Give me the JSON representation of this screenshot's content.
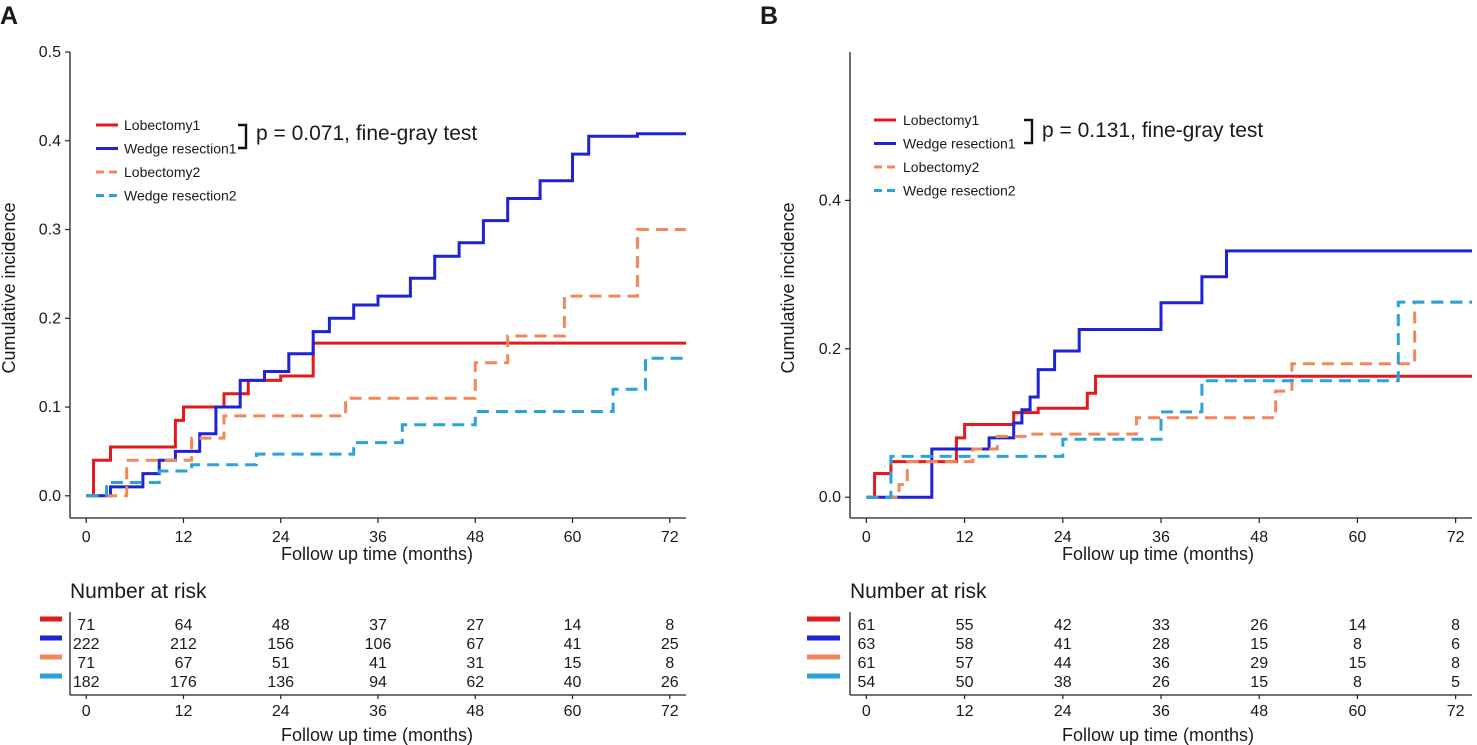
{
  "chart_data": [
    {
      "type": "line",
      "panel_label": "A",
      "title": "",
      "xlabel": "Follow up time (months)",
      "ylabel": "Cumulative incidence",
      "xlim": [
        -2,
        74
      ],
      "ylim": [
        -0.025,
        0.5
      ],
      "xticks": [
        0,
        12,
        24,
        36,
        48,
        60,
        72
      ],
      "yticks": [
        0.0,
        0.1,
        0.2,
        0.3,
        0.4,
        0.5
      ],
      "ytick_labels": [
        "0.0",
        "0.1",
        "0.2",
        "0.3",
        "0.4",
        "0.5"
      ],
      "legend_position": "top-left",
      "pvalue_text": "p = 0.071, fine-gray test",
      "series": [
        {
          "name": "Lobectomy1",
          "color": "#e31a1c",
          "dashed": false,
          "x": [
            0,
            0.9,
            0.9,
            3,
            3,
            11,
            11,
            12,
            12,
            17,
            17,
            20,
            20,
            24,
            24,
            28,
            28,
            74
          ],
          "y": [
            0,
            0,
            0.04,
            0.04,
            0.055,
            0.055,
            0.085,
            0.085,
            0.1,
            0.1,
            0.115,
            0.115,
            0.13,
            0.13,
            0.135,
            0.135,
            0.172,
            0.172
          ]
        },
        {
          "name": "Wedge resection1",
          "color": "#1f23d6",
          "dashed": false,
          "x": [
            0,
            3,
            3,
            7,
            7,
            9,
            9,
            11,
            11,
            14,
            14,
            16,
            16,
            19,
            19,
            22,
            22,
            25,
            25,
            28,
            28,
            30,
            30,
            33,
            33,
            36,
            36,
            40,
            40,
            43,
            43,
            46,
            46,
            49,
            49,
            52,
            52,
            56,
            56,
            60,
            60,
            62,
            62,
            68,
            68,
            74
          ],
          "y": [
            0,
            0,
            0.01,
            0.01,
            0.025,
            0.025,
            0.04,
            0.04,
            0.05,
            0.05,
            0.07,
            0.07,
            0.1,
            0.1,
            0.13,
            0.13,
            0.14,
            0.14,
            0.16,
            0.16,
            0.185,
            0.185,
            0.2,
            0.2,
            0.215,
            0.215,
            0.225,
            0.225,
            0.245,
            0.245,
            0.27,
            0.27,
            0.285,
            0.285,
            0.31,
            0.31,
            0.335,
            0.335,
            0.355,
            0.355,
            0.385,
            0.385,
            0.405,
            0.405,
            0.408,
            0.408
          ]
        },
        {
          "name": "Lobectomy2",
          "color": "#f4875a",
          "dashed": true,
          "x": [
            0,
            5,
            5,
            13,
            13,
            17,
            17,
            20,
            20,
            32,
            32,
            48,
            48,
            52,
            52,
            59,
            59,
            68,
            68,
            74
          ],
          "y": [
            0,
            0,
            0.04,
            0.04,
            0.065,
            0.065,
            0.09,
            0.09,
            0.09,
            0.09,
            0.11,
            0.11,
            0.15,
            0.15,
            0.18,
            0.18,
            0.225,
            0.225,
            0.3,
            0.3
          ]
        },
        {
          "name": "Wedge resection2",
          "color": "#2ba2dc",
          "dashed": true,
          "x": [
            0,
            2.5,
            2.5,
            9,
            9,
            13,
            13,
            21,
            21,
            33,
            33,
            39,
            39,
            48,
            48,
            65,
            65,
            69,
            69,
            74
          ],
          "y": [
            0,
            0,
            0.015,
            0.015,
            0.028,
            0.028,
            0.035,
            0.035,
            0.047,
            0.047,
            0.06,
            0.06,
            0.08,
            0.08,
            0.095,
            0.095,
            0.12,
            0.12,
            0.155,
            0.155
          ]
        }
      ],
      "risk_table": {
        "title": "Number at risk",
        "xlabel": "Follow up time (months)",
        "times": [
          0,
          12,
          24,
          36,
          48,
          60,
          72
        ],
        "rows": [
          {
            "color": "#e31a1c",
            "values": [
              "71",
              "64",
              "48",
              "37",
              "27",
              "14",
              "8"
            ]
          },
          {
            "color": "#1f23d6",
            "values": [
              "222",
              "212",
              "156",
              "106",
              "67",
              "41",
              "25"
            ]
          },
          {
            "color": "#f4875a",
            "values": [
              "71",
              "67",
              "51",
              "41",
              "31",
              "15",
              "8"
            ]
          },
          {
            "color": "#2ba2dc",
            "values": [
              "182",
              "176",
              "136",
              "94",
              "62",
              "40",
              "26"
            ]
          }
        ]
      }
    },
    {
      "type": "line",
      "panel_label": "B",
      "title": "",
      "xlabel": "Follow up time (months)",
      "ylabel": "Cumulative incidence",
      "xlim": [
        -2,
        74
      ],
      "ylim": [
        -0.028,
        0.6
      ],
      "xticks": [
        0,
        12,
        24,
        36,
        48,
        60,
        72
      ],
      "yticks": [
        0.0,
        0.2,
        0.4
      ],
      "ytick_labels": [
        "0.0",
        "0.2",
        "0.4"
      ],
      "legend_position": "top-left",
      "pvalue_text": "p = 0.131, fine-gray test",
      "series": [
        {
          "name": "Lobectomy1",
          "color": "#e31a1c",
          "dashed": false,
          "x": [
            0,
            1,
            1,
            3,
            3,
            11,
            11,
            12,
            12,
            18,
            18,
            21,
            21,
            27,
            27,
            28,
            28,
            74
          ],
          "y": [
            0,
            0,
            0.032,
            0.032,
            0.048,
            0.048,
            0.08,
            0.08,
            0.098,
            0.098,
            0.114,
            0.114,
            0.12,
            0.12,
            0.14,
            0.14,
            0.163,
            0.163
          ]
        },
        {
          "name": "Wedge resection1",
          "color": "#1f23d6",
          "dashed": false,
          "x": [
            0,
            3,
            3,
            8,
            8,
            11,
            11,
            15,
            15,
            18,
            18,
            19,
            19,
            20,
            20,
            21,
            21,
            23,
            23,
            26,
            26,
            36,
            36,
            41,
            41,
            44,
            44,
            46,
            46,
            74
          ],
          "y": [
            0,
            0,
            0,
            0,
            0.065,
            0.065,
            0.065,
            0.065,
            0.08,
            0.08,
            0.1,
            0.1,
            0.118,
            0.118,
            0.135,
            0.135,
            0.172,
            0.172,
            0.197,
            0.197,
            0.226,
            0.226,
            0.262,
            0.262,
            0.297,
            0.297,
            0.332,
            0.332,
            0.332,
            0.332
          ]
        },
        {
          "name": "Lobectomy2",
          "color": "#f4875a",
          "dashed": true,
          "x": [
            0,
            4,
            4,
            5,
            5,
            11,
            11,
            13,
            13,
            16,
            16,
            20,
            20,
            33,
            33,
            50,
            50,
            52,
            52,
            67,
            67,
            74
          ],
          "y": [
            0,
            0,
            0.017,
            0.017,
            0.048,
            0.048,
            0.048,
            0.048,
            0.065,
            0.065,
            0.082,
            0.082,
            0.085,
            0.085,
            0.107,
            0.107,
            0.143,
            0.143,
            0.18,
            0.18,
            0.263,
            0.263
          ]
        },
        {
          "name": "Wedge resection2",
          "color": "#2ba2dc",
          "dashed": true,
          "x": [
            0,
            3,
            3,
            24,
            24,
            36,
            36,
            41,
            41,
            65,
            65,
            74
          ],
          "y": [
            0,
            0,
            0.055,
            0.055,
            0.078,
            0.078,
            0.115,
            0.115,
            0.157,
            0.157,
            0.263,
            0.263
          ]
        }
      ],
      "risk_table": {
        "title": "Number at risk",
        "xlabel": "Follow up time (months)",
        "times": [
          0,
          12,
          24,
          36,
          48,
          60,
          72
        ],
        "rows": [
          {
            "color": "#e31a1c",
            "values": [
              "61",
              "55",
              "42",
              "33",
              "26",
              "14",
              "8"
            ]
          },
          {
            "color": "#1f23d6",
            "values": [
              "63",
              "58",
              "41",
              "28",
              "15",
              "8",
              "6"
            ]
          },
          {
            "color": "#f4875a",
            "values": [
              "61",
              "57",
              "44",
              "36",
              "29",
              "15",
              "8"
            ]
          },
          {
            "color": "#2ba2dc",
            "values": [
              "54",
              "50",
              "38",
              "26",
              "15",
              "8",
              "5"
            ]
          }
        ]
      }
    }
  ]
}
